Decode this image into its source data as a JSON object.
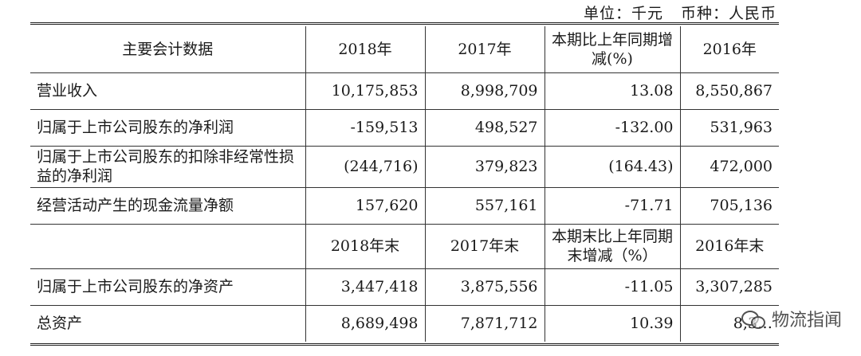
{
  "unit": {
    "unit_label": "单位：千元",
    "currency_label": "币种：人民币"
  },
  "table": {
    "header1": [
      "主要会计数据",
      "2018年",
      "2017年",
      "本期比上年同期增减(%)",
      "2016年"
    ],
    "rows1": [
      [
        "营业收入",
        "10,175,853",
        "8,998,709",
        "13.08",
        "8,550,867"
      ],
      [
        "归属于上市公司股东的净利润",
        "-159,513",
        "498,527",
        "-132.00",
        "531,963"
      ],
      [
        "归属于上市公司股东的扣除非经常性损益的净利润",
        "(244,716)",
        "379,823",
        "(164.43)",
        "472,000"
      ],
      [
        "经营活动产生的现金流量净额",
        "157,620",
        "557,161",
        "-71.71",
        "705,136"
      ]
    ],
    "header2": [
      "",
      "2018年末",
      "2017年末",
      "本期末比上年同期末增减（%）",
      "2016年末"
    ],
    "rows2": [
      [
        "归属于上市公司股东的净资产",
        "3,447,418",
        "3,875,556",
        "-11.05",
        "3,307,285"
      ],
      [
        "总资产",
        "8,689,498",
        "7,871,712",
        "10.39",
        "8,3…"
      ]
    ]
  },
  "watermark": {
    "text": "物流指闻",
    "icon": "wechat-icon"
  }
}
